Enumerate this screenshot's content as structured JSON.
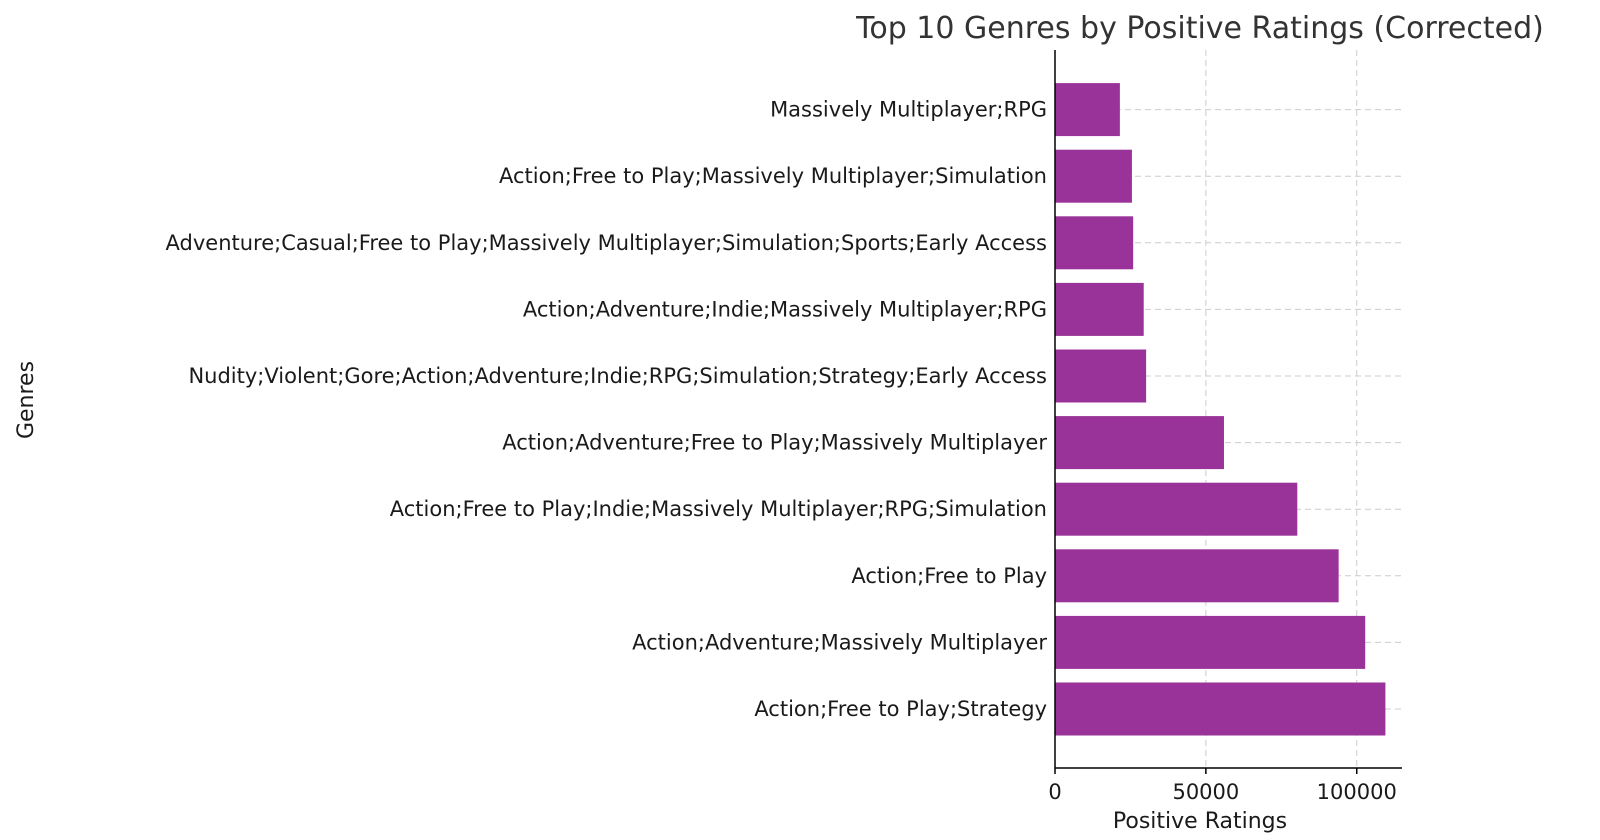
{
  "chart_data": {
    "type": "bar",
    "orientation": "horizontal",
    "title": "Top 10 Genres by Positive Ratings (Corrected)",
    "xlabel": "Positive Ratings",
    "ylabel": "Genres",
    "categories": [
      "Action;Free to Play;Strategy",
      "Action;Adventure;Massively Multiplayer",
      "Action;Free to Play",
      "Action;Free to Play;Indie;Massively Multiplayer;RPG;Simulation",
      "Action;Adventure;Free to Play;Massively Multiplayer",
      "Nudity;Violent;Gore;Action;Adventure;Indie;RPG;Simulation;Strategy;Early Access",
      "Action;Adventure;Indie;Massively Multiplayer;RPG",
      "Adventure;Casual;Free to Play;Massively Multiplayer;Simulation;Sports;Early Access",
      "Action;Free to Play;Massively Multiplayer;Simulation",
      "Massively Multiplayer;RPG"
    ],
    "values": [
      109500,
      102800,
      94000,
      80300,
      56000,
      30200,
      29400,
      25900,
      25500,
      21500
    ],
    "xlim": [
      0,
      115000
    ],
    "xticks": [
      0,
      50000,
      100000
    ],
    "xtick_labels": [
      "0",
      "50000",
      "100000"
    ],
    "grid": true,
    "bar_color": "#993399"
  }
}
